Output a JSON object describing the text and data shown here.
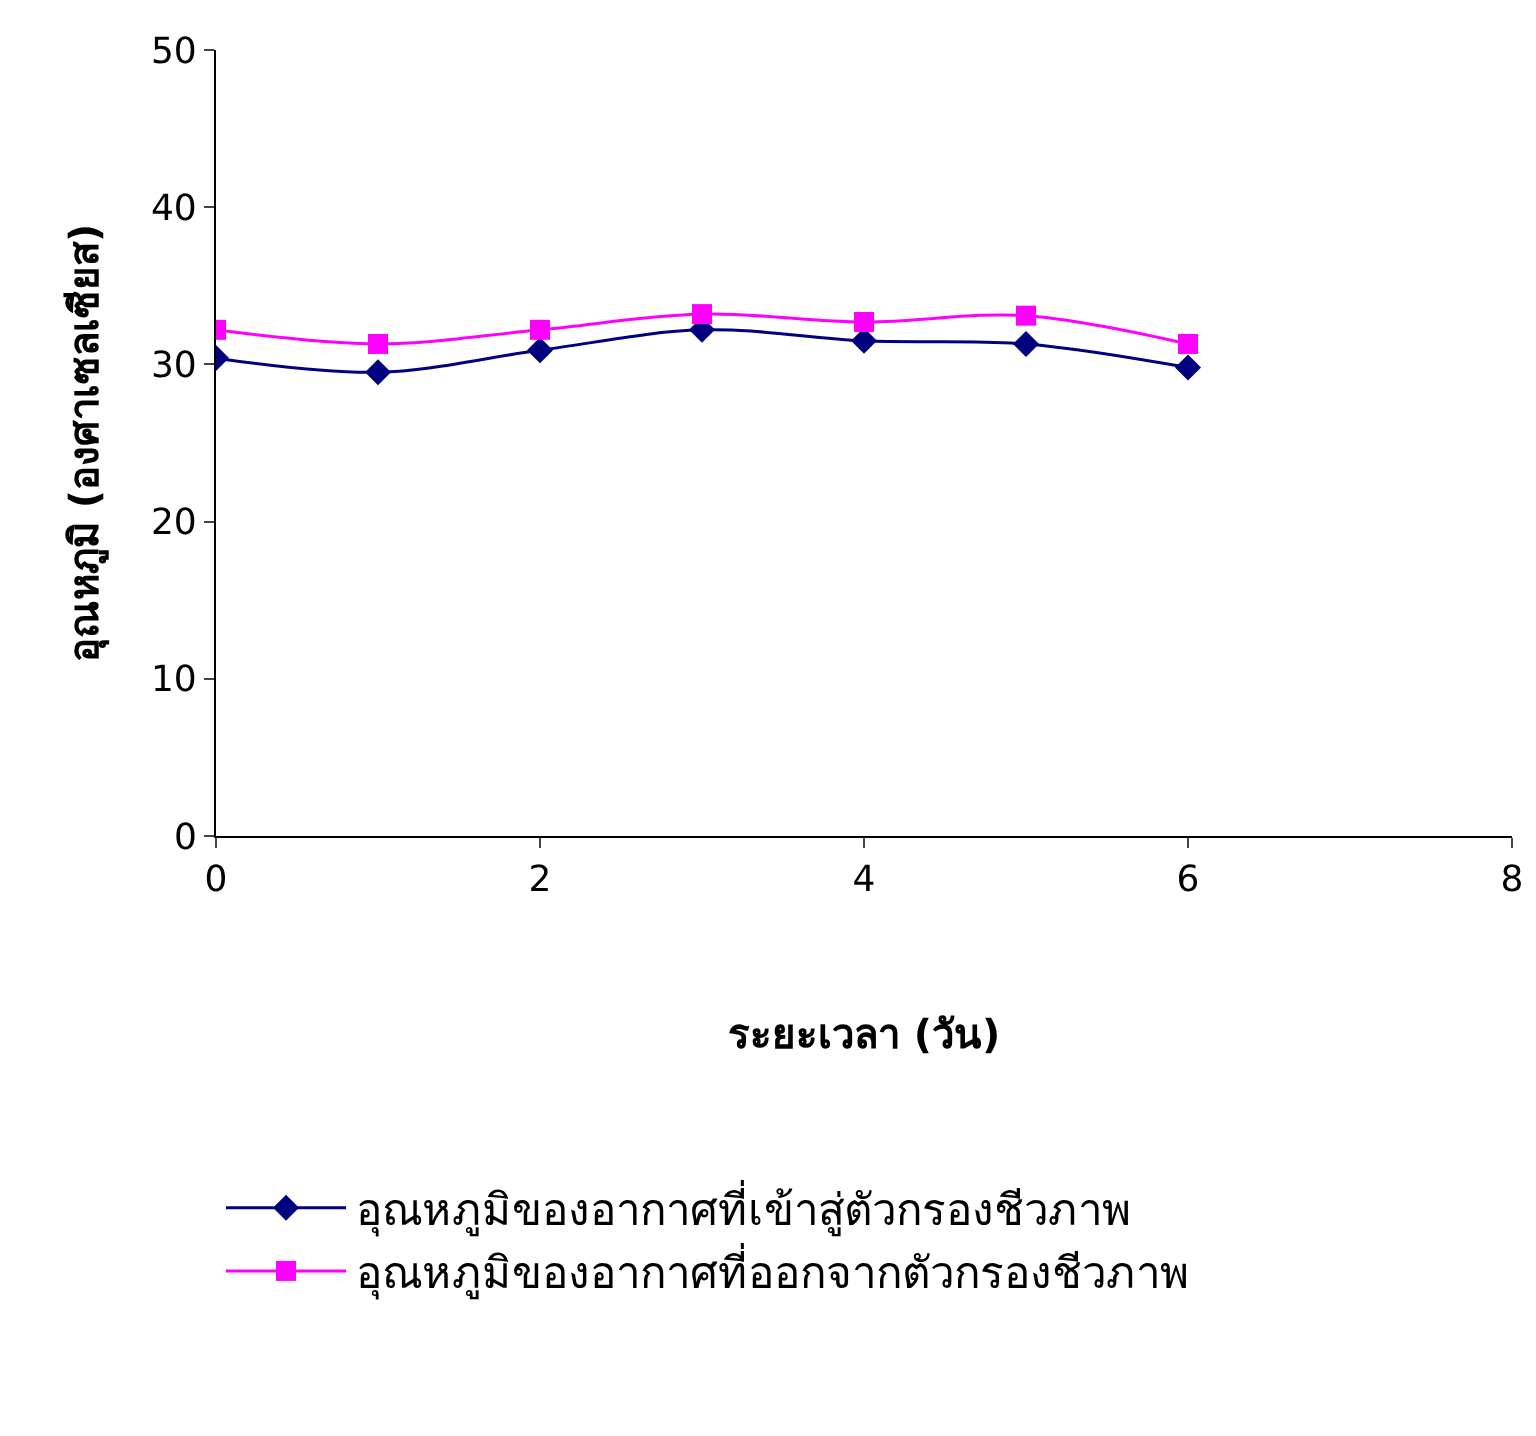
{
  "chart_data": {
    "type": "line",
    "xlabel": "ระยะเวลา (วัน)",
    "ylabel": "อุณหภูมิ (องศาเซลเซียส)",
    "x": [
      0,
      1,
      2,
      3,
      4,
      5,
      6
    ],
    "series": [
      {
        "name": "อุณหภูมิของอากาศที่เข้าสู่ตัวกรองชีวภาพ",
        "color": "#000080",
        "marker": "diamond",
        "values": [
          30.4,
          29.5,
          30.9,
          32.2,
          31.5,
          31.3,
          29.8
        ]
      },
      {
        "name": "อุณหภูมิของอากาศที่ออกจากตัวกรองชีวภาพ",
        "color": "#ff00ff",
        "marker": "square",
        "values": [
          32.2,
          31.3,
          32.2,
          33.2,
          32.7,
          33.1,
          31.3
        ]
      }
    ],
    "xlim": [
      0,
      8
    ],
    "xticks": [
      0,
      2,
      4,
      6,
      8
    ],
    "ylim": [
      0,
      50
    ],
    "yticks": [
      0,
      10,
      20,
      30,
      40,
      50
    ],
    "legend": "bottom",
    "line_style": "solid"
  }
}
